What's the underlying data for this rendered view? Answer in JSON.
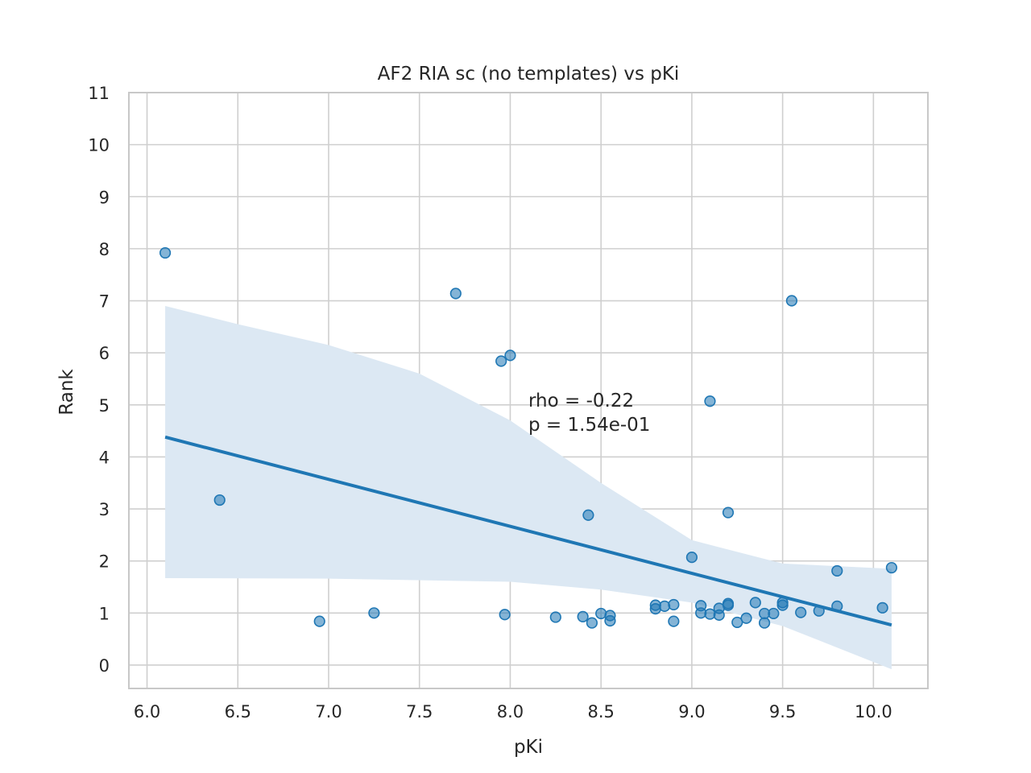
{
  "chart_data": {
    "type": "scatter",
    "title": "AF2 RIA sc (no templates) vs pKi",
    "xlabel": "pKi",
    "ylabel": "Rank",
    "xlim": [
      5.9,
      10.3
    ],
    "ylim": [
      -0.45,
      11
    ],
    "xticks": [
      6.0,
      6.5,
      7.0,
      7.5,
      8.0,
      8.5,
      9.0,
      9.5,
      10.0
    ],
    "xtick_labels": [
      "6.0",
      "6.5",
      "7.0",
      "7.5",
      "8.0",
      "8.5",
      "9.0",
      "9.5",
      "10.0"
    ],
    "yticks": [
      0,
      1,
      2,
      3,
      4,
      5,
      6,
      7,
      8,
      9,
      10,
      11
    ],
    "ytick_labels": [
      "0",
      "1",
      "2",
      "3",
      "4",
      "5",
      "6",
      "7",
      "8",
      "9",
      "10",
      "11"
    ],
    "grid": true,
    "point_color": "#1f77b4",
    "band_color": "#dce8f3",
    "points": [
      {
        "x": 6.1,
        "y": 7.92
      },
      {
        "x": 6.4,
        "y": 3.17
      },
      {
        "x": 6.95,
        "y": 0.84
      },
      {
        "x": 7.25,
        "y": 1.0
      },
      {
        "x": 7.7,
        "y": 7.14
      },
      {
        "x": 7.95,
        "y": 5.84
      },
      {
        "x": 7.97,
        "y": 0.97
      },
      {
        "x": 8.0,
        "y": 5.95
      },
      {
        "x": 8.25,
        "y": 0.92
      },
      {
        "x": 8.4,
        "y": 0.93
      },
      {
        "x": 8.43,
        "y": 2.88
      },
      {
        "x": 8.45,
        "y": 0.81
      },
      {
        "x": 8.5,
        "y": 0.99
      },
      {
        "x": 8.55,
        "y": 0.95
      },
      {
        "x": 8.55,
        "y": 0.85
      },
      {
        "x": 8.8,
        "y": 1.15
      },
      {
        "x": 8.8,
        "y": 1.08
      },
      {
        "x": 8.85,
        "y": 1.13
      },
      {
        "x": 8.9,
        "y": 1.16
      },
      {
        "x": 8.9,
        "y": 0.84
      },
      {
        "x": 9.0,
        "y": 2.07
      },
      {
        "x": 9.05,
        "y": 1.14
      },
      {
        "x": 9.05,
        "y": 1.0
      },
      {
        "x": 9.1,
        "y": 0.98
      },
      {
        "x": 9.1,
        "y": 5.07
      },
      {
        "x": 9.15,
        "y": 1.09
      },
      {
        "x": 9.15,
        "y": 0.96
      },
      {
        "x": 9.2,
        "y": 1.18
      },
      {
        "x": 9.2,
        "y": 1.15
      },
      {
        "x": 9.2,
        "y": 2.93
      },
      {
        "x": 9.25,
        "y": 0.82
      },
      {
        "x": 9.3,
        "y": 0.9
      },
      {
        "x": 9.35,
        "y": 1.2
      },
      {
        "x": 9.4,
        "y": 0.99
      },
      {
        "x": 9.4,
        "y": 0.81
      },
      {
        "x": 9.45,
        "y": 0.99
      },
      {
        "x": 9.5,
        "y": 1.2
      },
      {
        "x": 9.5,
        "y": 1.15
      },
      {
        "x": 9.55,
        "y": 7.0
      },
      {
        "x": 9.6,
        "y": 1.01
      },
      {
        "x": 9.7,
        "y": 1.04
      },
      {
        "x": 9.8,
        "y": 1.81
      },
      {
        "x": 9.8,
        "y": 1.13
      },
      {
        "x": 10.05,
        "y": 1.1
      },
      {
        "x": 10.1,
        "y": 1.87
      }
    ],
    "regression_line": [
      {
        "x": 6.1,
        "y": 4.38
      },
      {
        "x": 10.1,
        "y": 0.77
      }
    ],
    "confidence_band": {
      "upper": [
        {
          "x": 6.1,
          "y": 6.9
        },
        {
          "x": 6.5,
          "y": 6.55
        },
        {
          "x": 7.0,
          "y": 6.15
        },
        {
          "x": 7.5,
          "y": 5.6
        },
        {
          "x": 8.0,
          "y": 4.7
        },
        {
          "x": 8.5,
          "y": 3.5
        },
        {
          "x": 9.0,
          "y": 2.4
        },
        {
          "x": 9.5,
          "y": 1.95
        },
        {
          "x": 10.1,
          "y": 1.85
        }
      ],
      "lower": [
        {
          "x": 6.1,
          "y": 1.67
        },
        {
          "x": 7.0,
          "y": 1.66
        },
        {
          "x": 8.0,
          "y": 1.6
        },
        {
          "x": 8.5,
          "y": 1.45
        },
        {
          "x": 9.0,
          "y": 1.2
        },
        {
          "x": 9.5,
          "y": 0.75
        },
        {
          "x": 10.1,
          "y": -0.08
        }
      ]
    },
    "annotations": [
      "rho = -0.22",
      "p = 1.54e-01"
    ],
    "annotation_anchor": {
      "x": 8.1,
      "y": 5.0
    }
  }
}
